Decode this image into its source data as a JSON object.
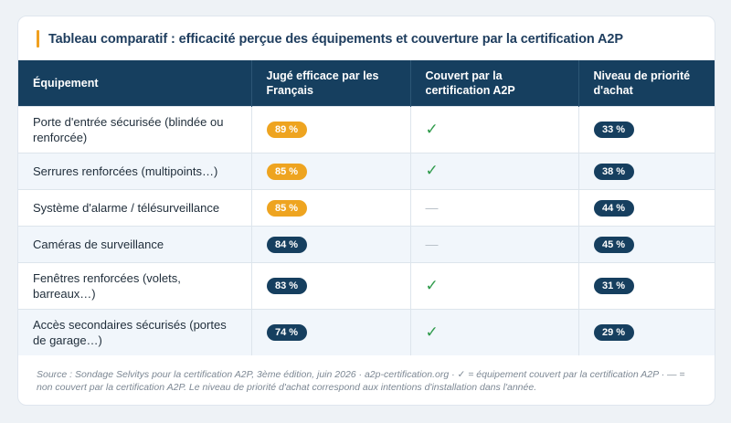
{
  "title": "Tableau comparatif : efficacité perçue des équipements et couverture par la certification A2P",
  "colors": {
    "accent": "#f0a020",
    "header_bg": "#163f5f",
    "pill_orange": "#eea420",
    "pill_navy": "#163f5f",
    "check_green": "#2e9a4a"
  },
  "columns": [
    "Équipement",
    "Jugé efficace par les Français",
    "Couvert par la certification A2P",
    "Niveau de priorité d'achat"
  ],
  "rows": [
    {
      "equipment": "Porte d'entrée sécurisée (blindée ou renforcée)",
      "efficacy": "89 %",
      "efficacy_color": "orange",
      "covered": true,
      "covered_symbol": "✓",
      "priority": "33 %"
    },
    {
      "equipment": "Serrures renforcées (multipoints…)",
      "efficacy": "85 %",
      "efficacy_color": "orange",
      "covered": true,
      "covered_symbol": "✓",
      "priority": "38 %"
    },
    {
      "equipment": "Système d'alarme / télésurveillance",
      "efficacy": "85 %",
      "efficacy_color": "orange",
      "covered": false,
      "covered_symbol": "—",
      "priority": "44 %"
    },
    {
      "equipment": "Caméras de surveillance",
      "efficacy": "84 %",
      "efficacy_color": "navy",
      "covered": false,
      "covered_symbol": "—",
      "priority": "45 %"
    },
    {
      "equipment": "Fenêtres renforcées (volets, barreaux…)",
      "efficacy": "83 %",
      "efficacy_color": "navy",
      "covered": true,
      "covered_symbol": "✓",
      "priority": "31 %"
    },
    {
      "equipment": "Accès secondaires sécurisés (portes de garage…)",
      "efficacy": "74 %",
      "efficacy_color": "navy",
      "covered": true,
      "covered_symbol": "✓",
      "priority": "29 %"
    }
  ],
  "footer": "Source : Sondage Selvitys pour la certification A2P, 3ème édition, juin 2026 · a2p-certification.org · ✓ = équipement couvert par la certification A2P · — = non couvert par la certification A2P. Le niveau de priorité d'achat correspond aux intentions d'installation dans l'année."
}
